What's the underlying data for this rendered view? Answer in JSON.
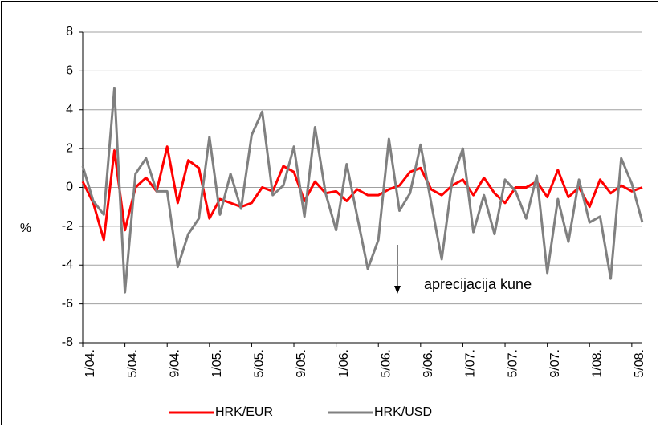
{
  "chart_data": {
    "type": "line",
    "y_label": "%",
    "annotation": "aprecijacija kune",
    "categories": [
      "1/04.",
      null,
      null,
      null,
      "5/04.",
      null,
      null,
      null,
      "9/04.",
      null,
      null,
      null,
      "1/05.",
      null,
      null,
      null,
      "5/05.",
      null,
      null,
      null,
      "9/05.",
      null,
      null,
      null,
      "1/06.",
      null,
      null,
      null,
      "5/06.",
      null,
      null,
      null,
      "9/06.",
      null,
      null,
      null,
      "1/07.",
      null,
      null,
      null,
      "5/07.",
      null,
      null,
      null,
      "9/07.",
      null,
      null,
      null,
      "1/08.",
      null,
      null,
      null,
      "5/08.",
      null
    ],
    "series": [
      {
        "name": "HRK/EUR",
        "color": "#ff0000",
        "values": [
          0.3,
          -0.8,
          -2.7,
          1.9,
          -2.2,
          0,
          0.5,
          -0.2,
          2.1,
          -0.8,
          1.4,
          1.0,
          -1.6,
          -0.6,
          -0.8,
          -1.0,
          -0.8,
          0,
          -0.2,
          1.1,
          0.8,
          -0.7,
          0.3,
          -0.3,
          -0.2,
          -0.7,
          -0.1,
          -0.4,
          -0.4,
          -0.1,
          0.1,
          0.8,
          1.0,
          -0.1,
          -0.4,
          0.1,
          0.4,
          -0.4,
          0.5,
          -0.3,
          -0.8,
          0,
          0,
          0.3,
          -0.5,
          0.9,
          -0.5,
          0,
          -1.0,
          0.4,
          -0.3,
          0.1,
          -0.2,
          0
        ]
      },
      {
        "name": "HRK/USD",
        "color": "#808080",
        "values": [
          1.1,
          -0.7,
          -1.4,
          5.1,
          -5.4,
          0.7,
          1.5,
          -0.2,
          -0.2,
          -4.1,
          -2.4,
          -1.6,
          2.6,
          -1.4,
          0.7,
          -1.1,
          2.7,
          3.9,
          -0.4,
          0.1,
          2.1,
          -1.5,
          3.1,
          -0.3,
          -2.2,
          1.2,
          -1.5,
          -4.2,
          -2.7,
          2.5,
          -1.2,
          -0.3,
          2.2,
          -0.8,
          -3.7,
          0.4,
          2.0,
          -2.3,
          -0.4,
          -2.4,
          0.4,
          -0.2,
          -1.6,
          0.6,
          -4.4,
          -0.6,
          -2.8,
          0.4,
          -1.8,
          -1.5,
          -4.7,
          1.5,
          0.2,
          -1.8
        ]
      }
    ],
    "ylim": [
      -8,
      8
    ],
    "yticks": [
      -8,
      -6,
      -4,
      -2,
      0,
      2,
      4,
      6,
      8
    ],
    "grid": true,
    "legend": "bottom"
  }
}
